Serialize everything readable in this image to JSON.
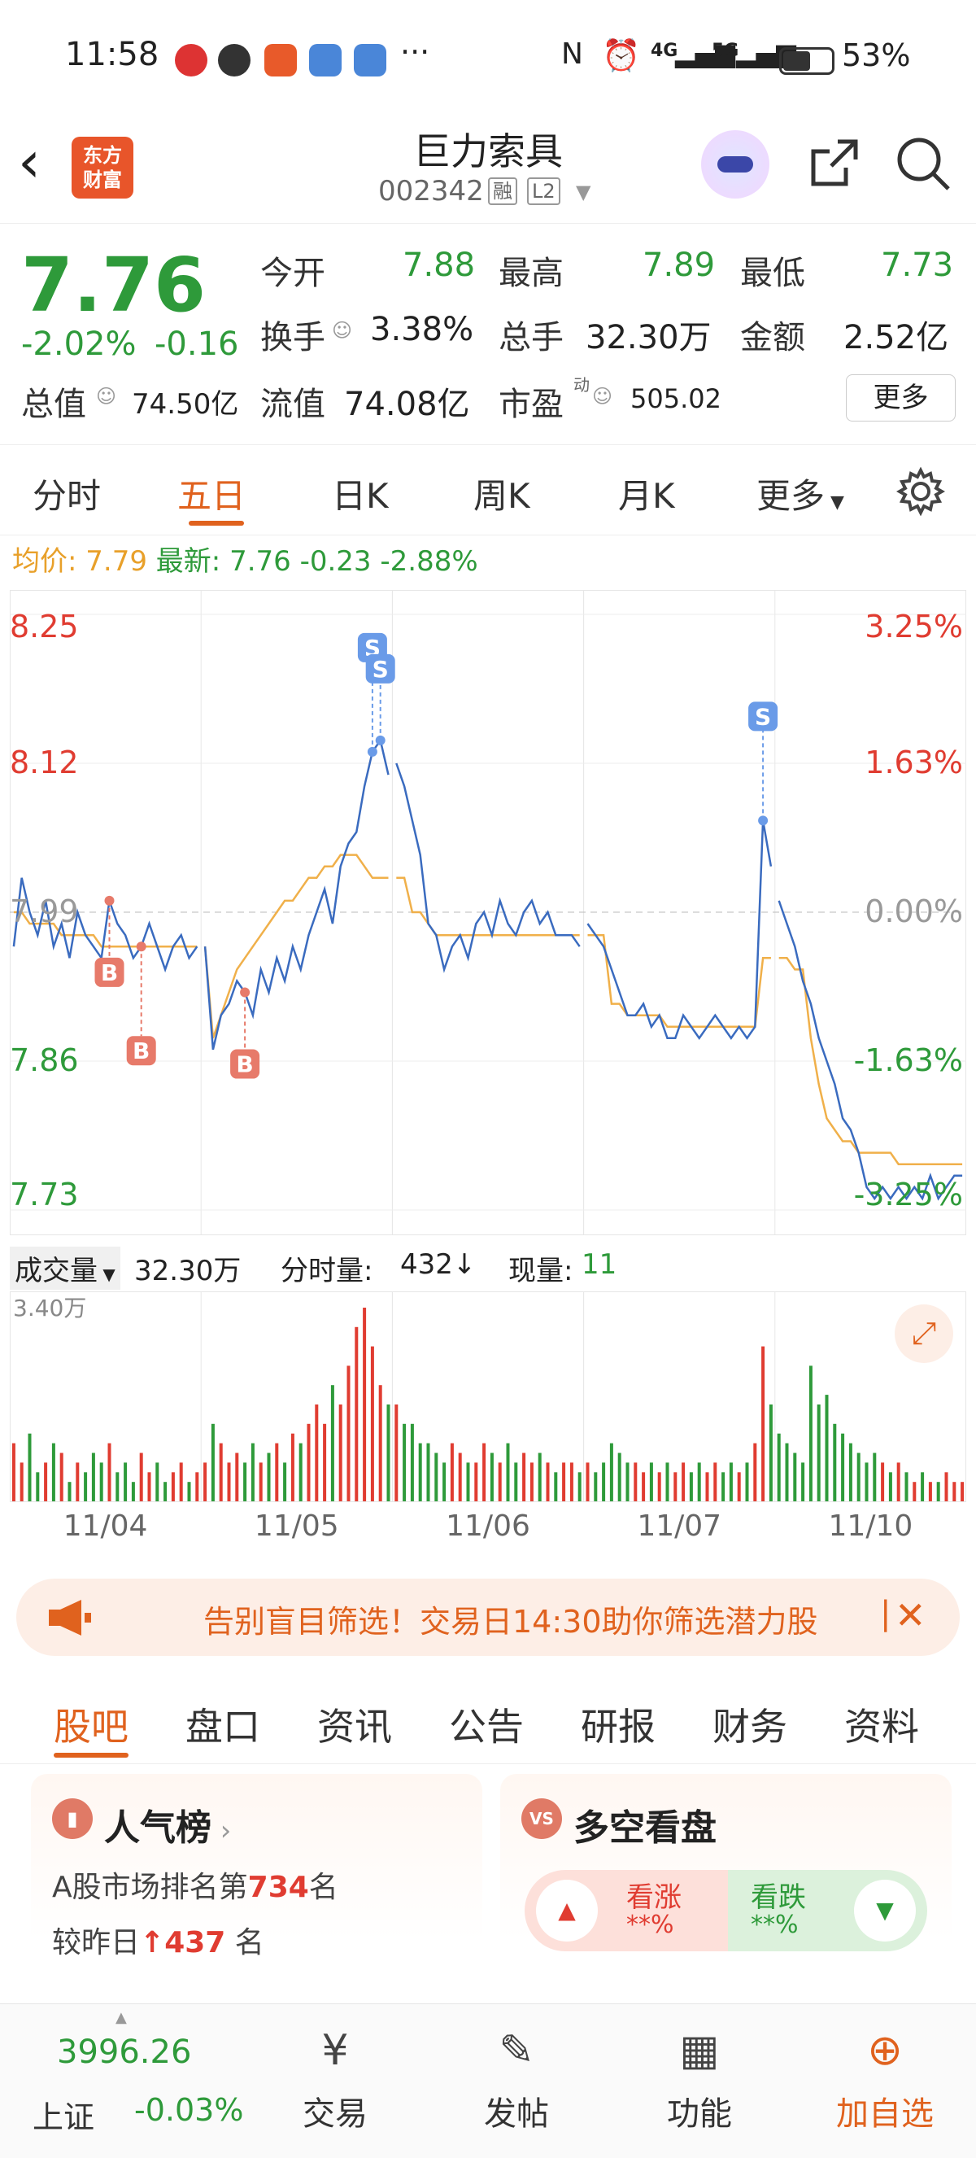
{
  "status_bar": {
    "time": "11:58",
    "ellipsis": "···",
    "network": "4G",
    "network2": "5G",
    "battery": "53%"
  },
  "header": {
    "logo_text_line1": "东方",
    "logo_text_line2": "财富",
    "title": "巨力索具",
    "code": "002342",
    "tag_margin": "融",
    "tag_level": "L2"
  },
  "quote": {
    "price": "7.76",
    "change_pct": "-2.02%",
    "change": "-0.16",
    "open_label": "今开",
    "open": "7.88",
    "high_label": "最高",
    "high": "7.89",
    "low_label": "最低",
    "low": "7.73",
    "turnover_label": "换手",
    "turnover": "3.38%",
    "volume_label": "总手",
    "volume": "32.30万",
    "amount_label": "金额",
    "amount": "2.52亿",
    "mktcap_label": "总值",
    "mktcap": "74.50亿",
    "float_label": "流值",
    "float": "74.08亿",
    "pe_label": "市盈",
    "pe_sup": "动",
    "pe": "505.02",
    "more": "更多"
  },
  "period_tabs": [
    "分时",
    "五日",
    "日K",
    "周K",
    "月K",
    "更多"
  ],
  "avg_line": {
    "avg_label": "均价:",
    "avg": "7.79",
    "latest_label": "最新:",
    "latest": "7.76",
    "chg": "-0.23",
    "chg_pct": "-2.88%"
  },
  "chart_data": {
    "type": "line",
    "y_left_ticks": [
      "8.25",
      "8.12",
      "7.99",
      "7.86",
      "7.73"
    ],
    "y_right_ticks": [
      "3.25%",
      "1.63%",
      "0.00%",
      "-1.63%",
      "-3.25%"
    ],
    "ylim": [
      7.73,
      8.25
    ],
    "prev_close": 7.99,
    "x_labels": [
      "11/04",
      "11/05",
      "11/06",
      "11/07",
      "11/10"
    ],
    "series": [
      {
        "values": [
          7.96,
          8.02,
          7.99,
          7.97,
          8.0,
          7.96,
          7.98,
          7.95,
          7.99,
          7.97,
          7.96,
          7.95,
          8.0,
          7.98,
          7.97,
          7.95,
          7.96,
          7.98,
          7.96,
          7.94,
          7.96,
          7.97,
          7.95,
          7.96,
          7.96,
          7.87,
          7.9,
          7.91,
          7.93,
          7.92,
          7.9,
          7.94,
          7.92,
          7.95,
          7.93,
          7.96,
          7.94,
          7.97,
          7.99,
          8.01,
          7.98,
          8.03,
          8.05,
          8.06,
          8.1,
          8.13,
          8.14,
          8.11,
          8.12,
          8.1,
          8.07,
          8.04,
          7.98,
          7.97,
          7.94,
          7.96,
          7.97,
          7.95,
          7.98,
          7.99,
          7.97,
          8.0,
          7.98,
          7.97,
          7.99,
          8.0,
          7.98,
          7.99,
          7.97,
          7.97,
          7.97,
          7.96,
          7.98,
          7.97,
          7.96,
          7.94,
          7.92,
          7.9,
          7.9,
          7.91,
          7.89,
          7.9,
          7.88,
          7.88,
          7.9,
          7.89,
          7.88,
          7.89,
          7.9,
          7.89,
          7.88,
          7.89,
          7.88,
          7.89,
          8.07,
          8.03,
          8.0,
          7.98,
          7.96,
          7.93,
          7.91,
          7.88,
          7.86,
          7.84,
          7.81,
          7.8,
          7.78,
          7.75,
          7.74,
          7.75,
          7.74,
          7.75,
          7.74,
          7.75,
          7.74,
          7.76,
          7.74,
          7.75,
          7.76,
          7.76
        ],
        "avg_values": [
          7.99,
          7.99,
          7.98,
          7.98,
          7.98,
          7.98,
          7.97,
          7.97,
          7.97,
          7.97,
          7.97,
          7.96,
          7.96,
          7.96,
          7.96,
          7.96,
          7.96,
          7.96,
          7.96,
          7.96,
          7.96,
          7.96,
          7.96,
          7.96,
          7.96,
          7.88,
          7.9,
          7.92,
          7.94,
          7.95,
          7.96,
          7.97,
          7.98,
          7.99,
          8.0,
          8.0,
          8.01,
          8.02,
          8.02,
          8.03,
          8.03,
          8.04,
          8.04,
          8.04,
          8.03,
          8.02,
          8.02,
          8.02,
          8.02,
          8.02,
          7.99,
          7.99,
          7.98,
          7.97,
          7.97,
          7.97,
          7.97,
          7.97,
          7.97,
          7.97,
          7.97,
          7.97,
          7.97,
          7.97,
          7.97,
          7.97,
          7.97,
          7.97,
          7.97,
          7.97,
          7.97,
          7.97,
          7.97,
          7.97,
          7.97,
          7.91,
          7.91,
          7.9,
          7.9,
          7.9,
          7.9,
          7.9,
          7.89,
          7.89,
          7.89,
          7.89,
          7.89,
          7.89,
          7.89,
          7.89,
          7.89,
          7.89,
          7.89,
          7.89,
          7.95,
          7.95,
          7.95,
          7.95,
          7.94,
          7.94,
          7.88,
          7.84,
          7.81,
          7.8,
          7.79,
          7.79,
          7.78,
          7.78,
          7.78,
          7.78,
          7.78,
          7.77,
          7.77,
          7.77,
          7.77,
          7.77,
          7.77,
          7.77,
          7.77,
          7.77
        ]
      }
    ],
    "markers": [
      {
        "label": "B",
        "index": 12
      },
      {
        "label": "B",
        "index": 16
      },
      {
        "label": "B",
        "index": 29
      },
      {
        "label": "S",
        "index": 45
      },
      {
        "label": "S",
        "index": 46
      },
      {
        "label": "S",
        "index": 94
      }
    ],
    "volume": {
      "max_label": "3.40万",
      "values": [
        0.3,
        0.2,
        0.35,
        0.15,
        0.2,
        0.3,
        0.25,
        0.1,
        0.2,
        0.15,
        0.25,
        0.2,
        0.3,
        0.15,
        0.2,
        0.1,
        0.25,
        0.15,
        0.2,
        0.1,
        0.15,
        0.2,
        0.1,
        0.15,
        0.2,
        0.4,
        0.3,
        0.2,
        0.25,
        0.2,
        0.3,
        0.2,
        0.25,
        0.3,
        0.2,
        0.35,
        0.3,
        0.4,
        0.5,
        0.4,
        0.6,
        0.5,
        0.7,
        0.9,
        1.0,
        0.8,
        0.6,
        0.5,
        0.5,
        0.4,
        0.4,
        0.3,
        0.3,
        0.25,
        0.2,
        0.3,
        0.25,
        0.2,
        0.2,
        0.3,
        0.25,
        0.2,
        0.3,
        0.2,
        0.25,
        0.2,
        0.25,
        0.2,
        0.15,
        0.2,
        0.2,
        0.15,
        0.2,
        0.15,
        0.2,
        0.3,
        0.25,
        0.2,
        0.2,
        0.15,
        0.2,
        0.15,
        0.2,
        0.15,
        0.2,
        0.15,
        0.2,
        0.15,
        0.2,
        0.15,
        0.2,
        0.15,
        0.2,
        0.3,
        0.8,
        0.5,
        0.35,
        0.3,
        0.25,
        0.2,
        0.7,
        0.5,
        0.55,
        0.4,
        0.35,
        0.3,
        0.25,
        0.2,
        0.25,
        0.2,
        0.15,
        0.2,
        0.15,
        0.1,
        0.15,
        0.1,
        0.1,
        0.15,
        0.1,
        0.1
      ]
    }
  },
  "volume_header": {
    "label": "成交量",
    "total": "32.30万",
    "tick_label": "分时量:",
    "tick": "432",
    "now_label": "现量:",
    "now": "11"
  },
  "banner": {
    "text": "告别盲目筛选！交易日14:30助你筛选潜力股"
  },
  "content_tabs": [
    "股吧",
    "盘口",
    "资讯",
    "公告",
    "研报",
    "财务",
    "资料"
  ],
  "cards": {
    "popularity": {
      "title": "人气榜",
      "line1_prefix": "A股市场排名第",
      "rank": "734",
      "line1_suffix": "名",
      "line2_prefix": "较昨日",
      "rank_change": "437",
      "line2_suffix": "名"
    },
    "bullbear": {
      "title": "多空看盘",
      "up_label": "看涨",
      "up_value": "**%",
      "down_label": "看跌",
      "down_value": "**%"
    }
  },
  "bottom_bar": {
    "index_value": "3996.26",
    "index_name": "上证",
    "index_change": "-0.03%",
    "items": [
      "交易",
      "发帖",
      "功能",
      "加自选"
    ]
  }
}
